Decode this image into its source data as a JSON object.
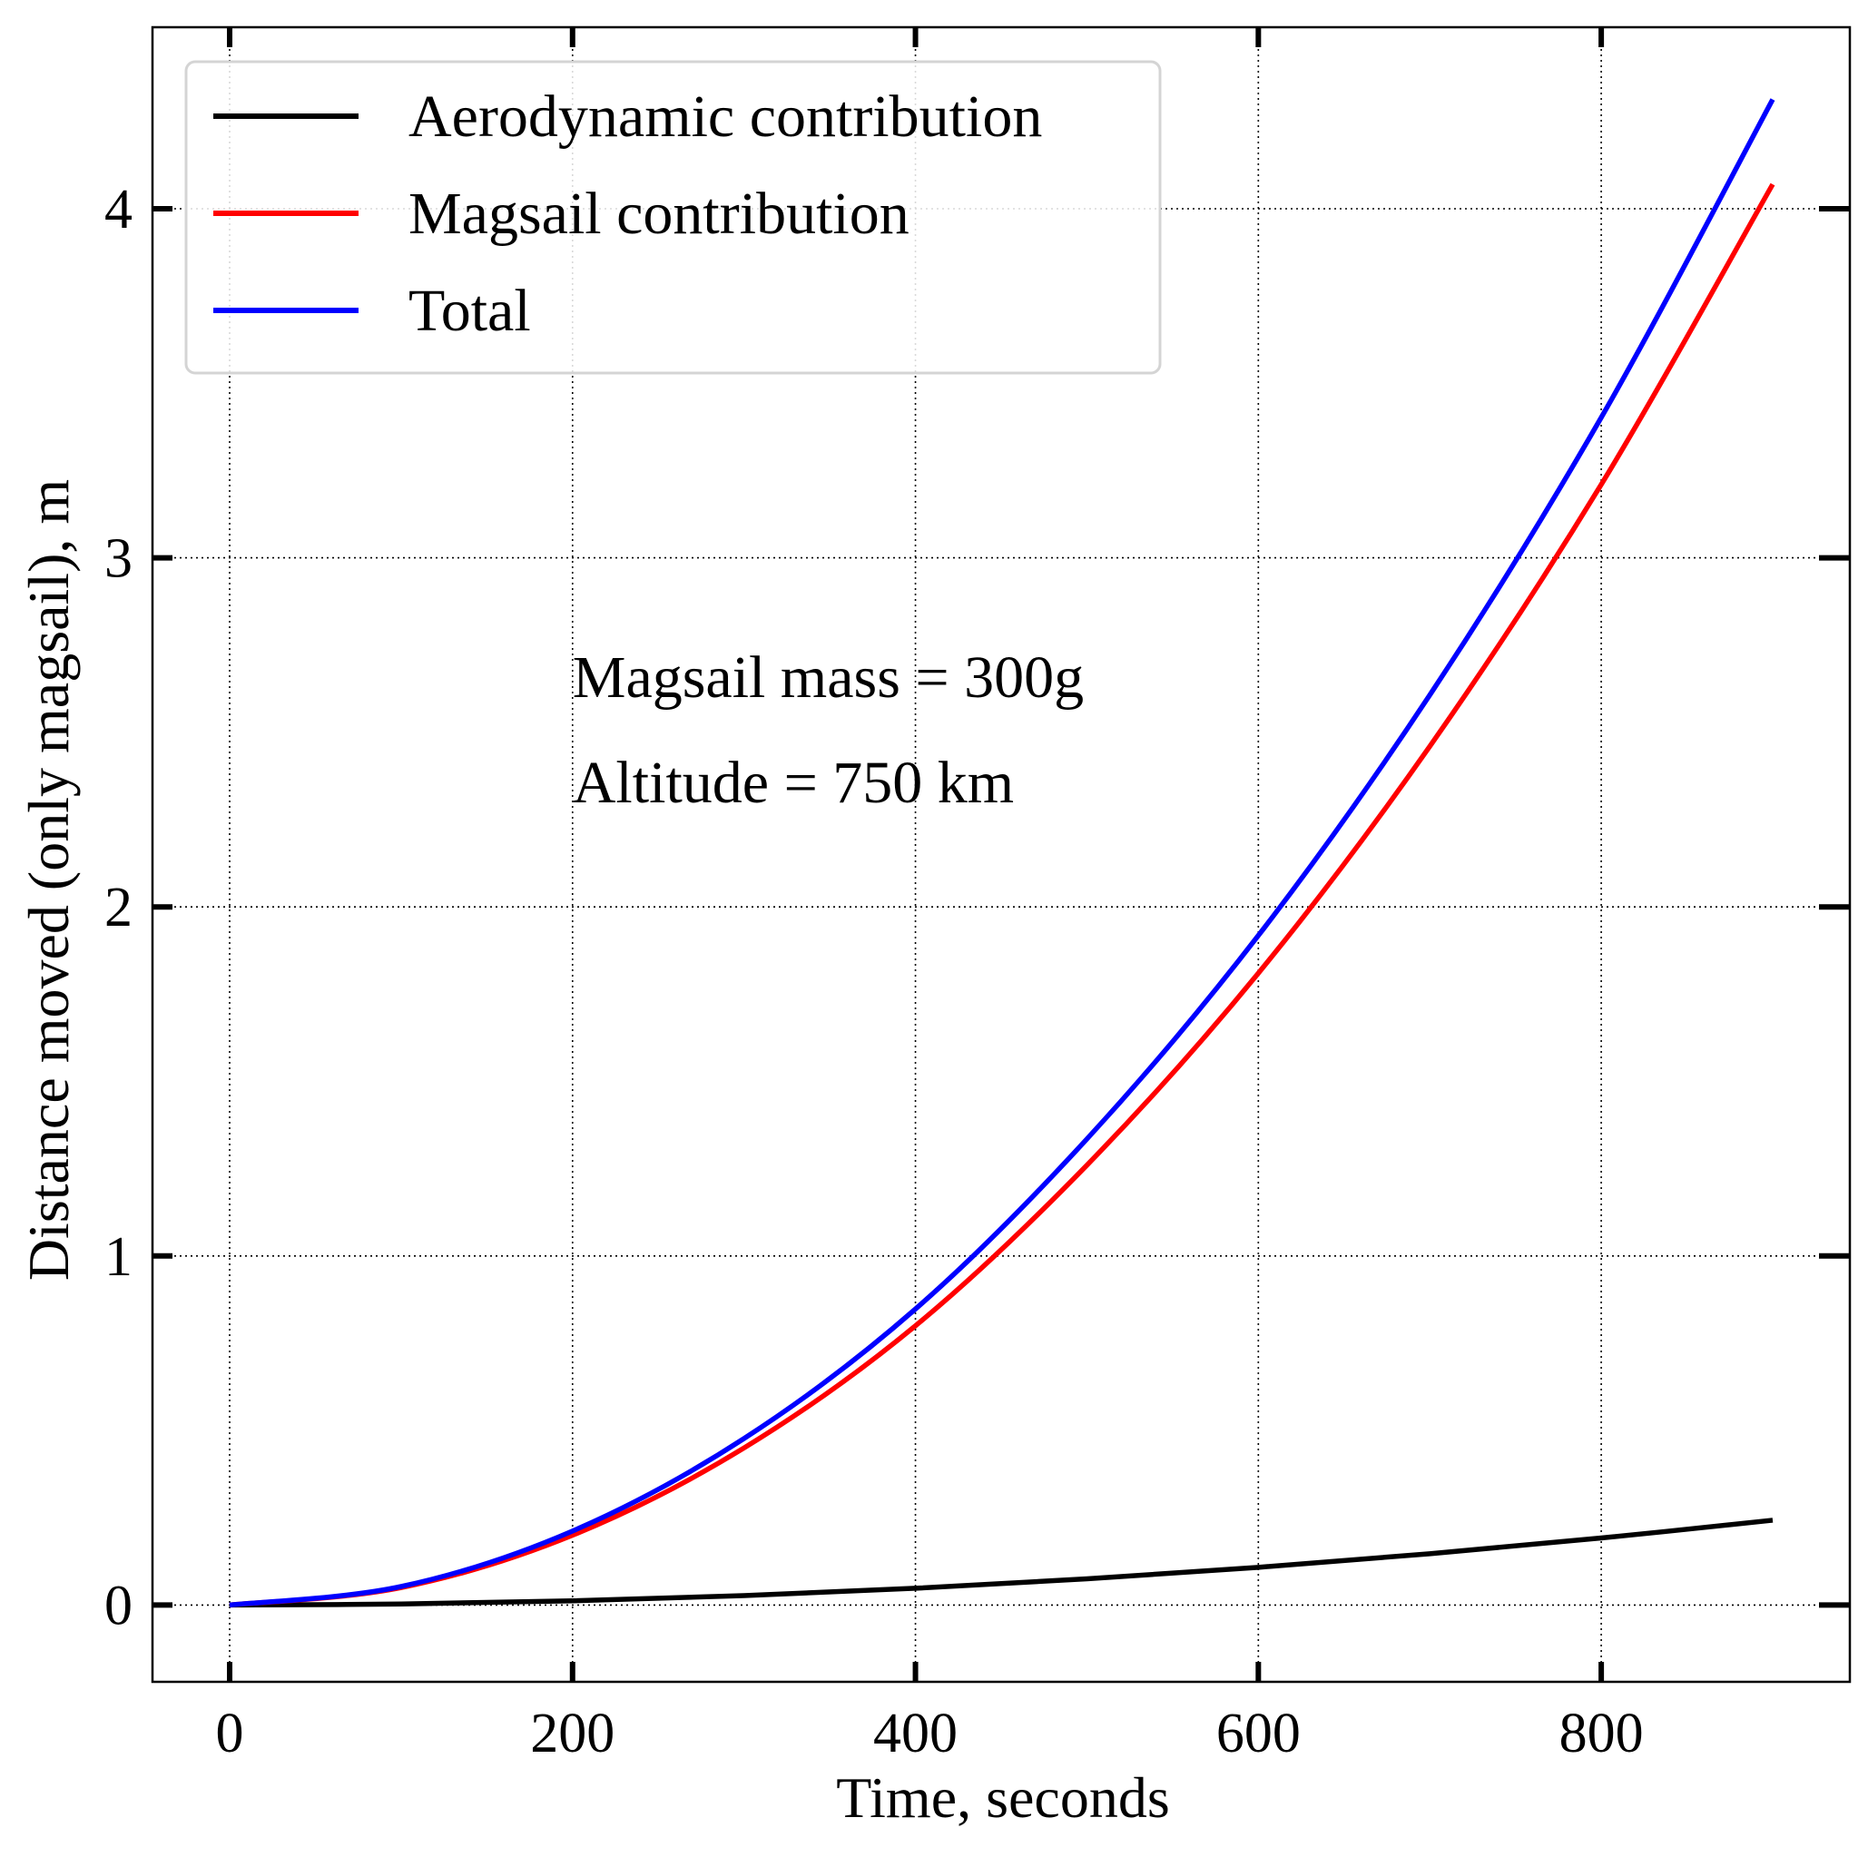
{
  "chart_data": {
    "type": "line",
    "title": "",
    "xlabel": "Time, seconds",
    "ylabel": "Distance moved (only magsail), m",
    "xlim": [
      -45,
      945
    ],
    "ylim": [
      -0.22,
      4.52
    ],
    "xticks": [
      0,
      200,
      400,
      600,
      800
    ],
    "xtick_labels": [
      "0",
      "200",
      "400",
      "600",
      "800"
    ],
    "yticks": [
      0,
      1,
      2,
      3,
      4
    ],
    "ytick_labels": [
      "0",
      "1",
      "2",
      "3",
      "4"
    ],
    "grid": true,
    "legend_position": "upper-left",
    "x": [
      0,
      100,
      200,
      300,
      400,
      500,
      600,
      700,
      800,
      900
    ],
    "series": [
      {
        "name": "Aerodynamic contribution",
        "color": "#000000",
        "values": [
          0.0,
          0.003,
          0.012,
          0.027,
          0.048,
          0.075,
          0.108,
          0.147,
          0.192,
          0.243
        ]
      },
      {
        "name": "Magsail contribution",
        "color": "#ff0000",
        "values": [
          0.0,
          0.05,
          0.2,
          0.45,
          0.8,
          1.26,
          1.81,
          2.46,
          3.21,
          4.07
        ]
      },
      {
        "name": "Total",
        "color": "#0000ff",
        "values": [
          0.0,
          0.053,
          0.212,
          0.477,
          0.848,
          1.335,
          1.918,
          2.607,
          3.402,
          4.313
        ]
      }
    ],
    "annotations": [
      "Magsail mass = 300g",
      "Altitude = 750 km"
    ]
  }
}
